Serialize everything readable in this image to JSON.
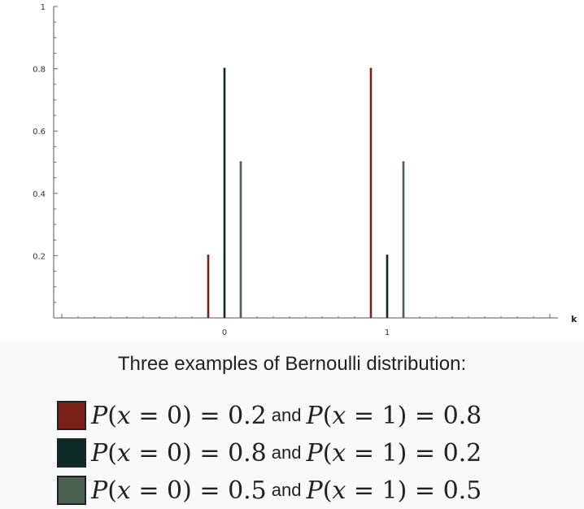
{
  "chart_data": {
    "type": "bar",
    "subtype": "stem",
    "xlabel": "k",
    "ylabel": "",
    "x_ticks": [
      "0",
      "1"
    ],
    "y_ticks": [
      "0.2",
      "0.4",
      "0.6",
      "0.8",
      "1"
    ],
    "ylim": [
      0,
      1
    ],
    "xlim": [
      -1.05,
      2.05
    ],
    "grid": false,
    "categories": [
      "0",
      "1"
    ],
    "series": [
      {
        "name": "P(x = 0) = 0.2 and P(x = 1) = 0.8",
        "color": "#7b2118",
        "offset": -0.1,
        "values": [
          0.2,
          0.8
        ]
      },
      {
        "name": "P(x = 0) = 0.8 and P(x = 1) = 0.2",
        "color": "#0d2a26",
        "offset": 0.0,
        "values": [
          0.8,
          0.2
        ]
      },
      {
        "name": "P(x = 0) = 0.5 and P(x = 1) = 0.5",
        "color": "#48604f",
        "offset": 0.1,
        "values": [
          0.5,
          0.5
        ]
      }
    ]
  },
  "caption": "Three examples of Bernoulli distribution:",
  "legend": [
    {
      "color": "#7b2118",
      "swatch_border": "#222222",
      "p0": "0.2",
      "p1": "0.8"
    },
    {
      "color": "#0d2a26",
      "swatch_border": "#222222",
      "p0": "0.8",
      "p1": "0.2"
    },
    {
      "color": "#48604f",
      "swatch_border": "#222222",
      "p0": "0.5",
      "p1": "0.5"
    }
  ],
  "legend_text": {
    "P": "P",
    "x": "x",
    "open_paren": "(",
    "close_paren": ")",
    "eq0": " = 0",
    "eq1": " = 1",
    "equals": " = ",
    "and": "and"
  }
}
